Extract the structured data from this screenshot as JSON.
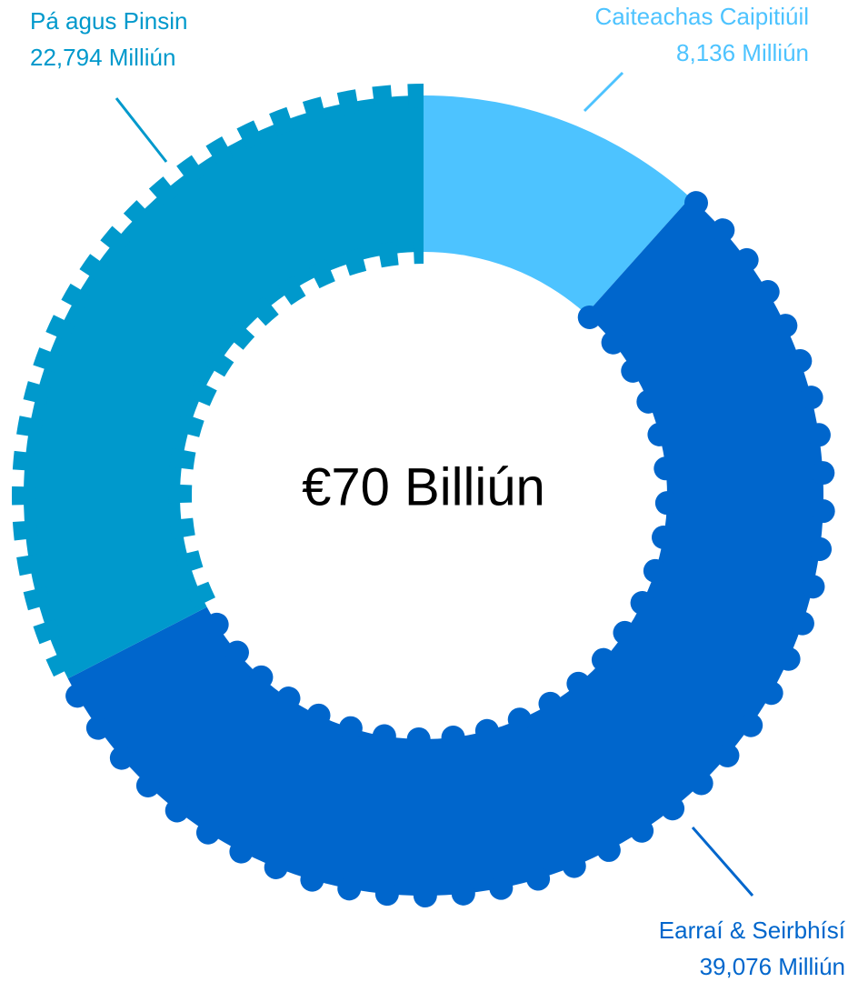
{
  "chart_data": {
    "type": "donut",
    "center_label": "€70 Billiún",
    "categories": [
      "Caiteachas Caipitiúil",
      "Earraí & Seirbhísí",
      "Pá agus Pinsin"
    ],
    "values": [
      8136,
      39076,
      22794
    ],
    "value_labels": [
      "8,136 Milliún",
      "39,076 Milliún",
      "22,794 Milliún"
    ],
    "colors": [
      "#4dc3ff",
      "#0066cc",
      "#0099cc"
    ]
  }
}
